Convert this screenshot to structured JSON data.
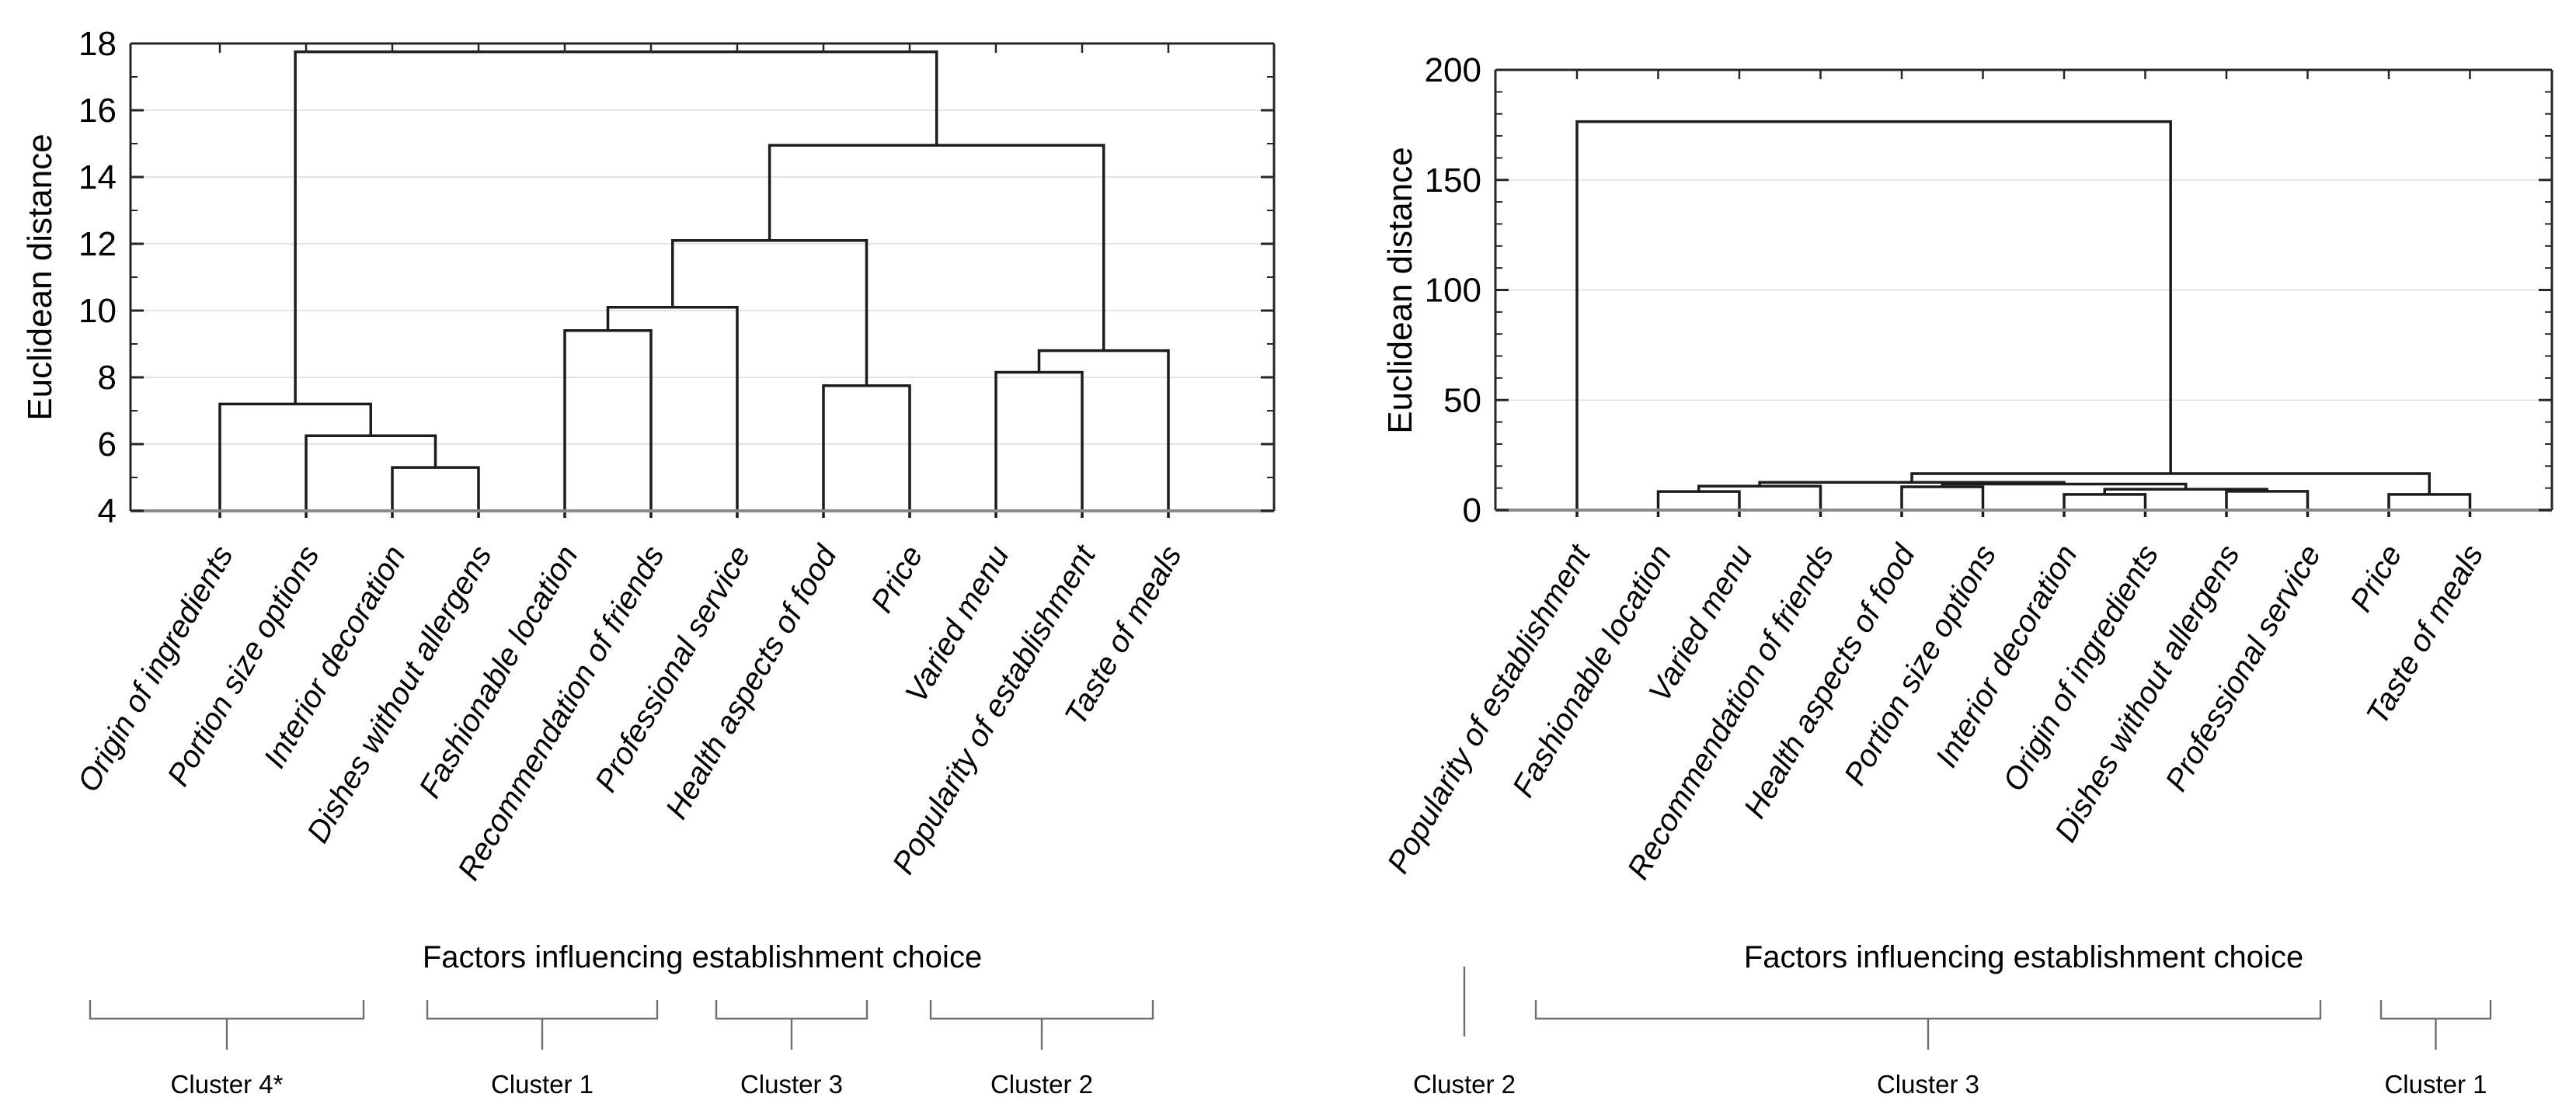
{
  "page": {
    "background": "#ffffff"
  },
  "styles": {
    "line_color": "#1c1c1c",
    "frame_color": "#262626",
    "baseline_color": "#8a8a8a",
    "grid_color": "#dcdcdc",
    "bracket_color": "#6f6f6f",
    "text_color": "#000000"
  },
  "chart_data": [
    {
      "type": "dendrogram",
      "title": "",
      "ylabel": "Euclidean distance",
      "xlabel": "Factors influencing establishment choice",
      "ylim": [
        4,
        18
      ],
      "ytick_step": 2,
      "yminor_step": 1,
      "ytick_labels": [
        "4",
        "6",
        "8",
        "10",
        "12",
        "14",
        "16",
        "18"
      ],
      "grid": true,
      "legend": "none",
      "leaves": [
        "Origin of ingredients",
        "Portion size options",
        "Interior decoration",
        "Dishes without allergens",
        "Fashionable location",
        "Recommendation of friends",
        "Professional service",
        "Health aspects of food",
        "Price",
        "Varied menu",
        "Popularity of establishment",
        "Taste of meals"
      ],
      "merges": [
        {
          "a": "L2",
          "b": "L3",
          "h": 5.3
        },
        {
          "a": "L1",
          "b": "M0",
          "h": 6.25
        },
        {
          "a": "L0",
          "b": "M1",
          "h": 7.2
        },
        {
          "a": "L4",
          "b": "L5",
          "h": 9.4
        },
        {
          "a": "M3",
          "b": "L6",
          "h": 10.1
        },
        {
          "a": "L7",
          "b": "L8",
          "h": 7.75
        },
        {
          "a": "M4",
          "b": "M5",
          "h": 12.1
        },
        {
          "a": "L9",
          "b": "L10",
          "h": 8.15
        },
        {
          "a": "M7",
          "b": "L11",
          "h": 8.8
        },
        {
          "a": "M6",
          "b": "M8",
          "h": 14.95
        },
        {
          "a": "M2",
          "b": "M9",
          "h": 17.75
        }
      ],
      "clusters": [
        {
          "label": "Cluster 4*",
          "from_leaf": 0,
          "to_leaf": 3
        },
        {
          "label": "Cluster 1",
          "from_leaf": 4,
          "to_leaf": 6
        },
        {
          "label": "Cluster 3",
          "from_leaf": 7,
          "to_leaf": 8
        },
        {
          "label": "Cluster 2",
          "from_leaf": 9,
          "to_leaf": 11
        }
      ]
    },
    {
      "type": "dendrogram",
      "title": "",
      "ylabel": "Euclidean distance",
      "xlabel": "Factors influencing establishment choice",
      "ylim": [
        0,
        200
      ],
      "ytick_step": 50,
      "yminor_step": 10,
      "ytick_labels": [
        "0",
        "50",
        "100",
        "150",
        "200"
      ],
      "grid": true,
      "legend": "none",
      "leaves": [
        "Popularity of establishment",
        "Fashionable location",
        "Varied menu",
        "Recommendation of friends",
        "Health aspects of food",
        "Portion size options",
        "Interior decoration",
        "Origin of ingredients",
        "Dishes without allergens",
        "Professional service",
        "Price",
        "Taste of meals"
      ],
      "merges": [
        {
          "a": "L6",
          "b": "L7",
          "h": 7.1
        },
        {
          "a": "L8",
          "b": "L9",
          "h": 8.5
        },
        {
          "a": "M0",
          "b": "M1",
          "h": 9.5
        },
        {
          "a": "L4",
          "b": "L5",
          "h": 10.6
        },
        {
          "a": "M3",
          "b": "M2",
          "h": 11.8
        },
        {
          "a": "L1",
          "b": "L2",
          "h": 8.4
        },
        {
          "a": "M5",
          "b": "L3",
          "h": 10.9
        },
        {
          "a": "M6",
          "b": "M4",
          "h": 12.6
        },
        {
          "a": "L10",
          "b": "L11",
          "h": 7.1
        },
        {
          "a": "M7",
          "b": "M8",
          "h": 16.6
        },
        {
          "a": "L0",
          "b": "M9",
          "h": 176.5
        }
      ],
      "clusters": [
        {
          "label": "Cluster 2",
          "from_leaf": 0,
          "to_leaf": 0
        },
        {
          "label": "Cluster 3",
          "from_leaf": 1,
          "to_leaf": 9
        },
        {
          "label": "Cluster 1",
          "from_leaf": 10,
          "to_leaf": 11
        }
      ]
    }
  ]
}
